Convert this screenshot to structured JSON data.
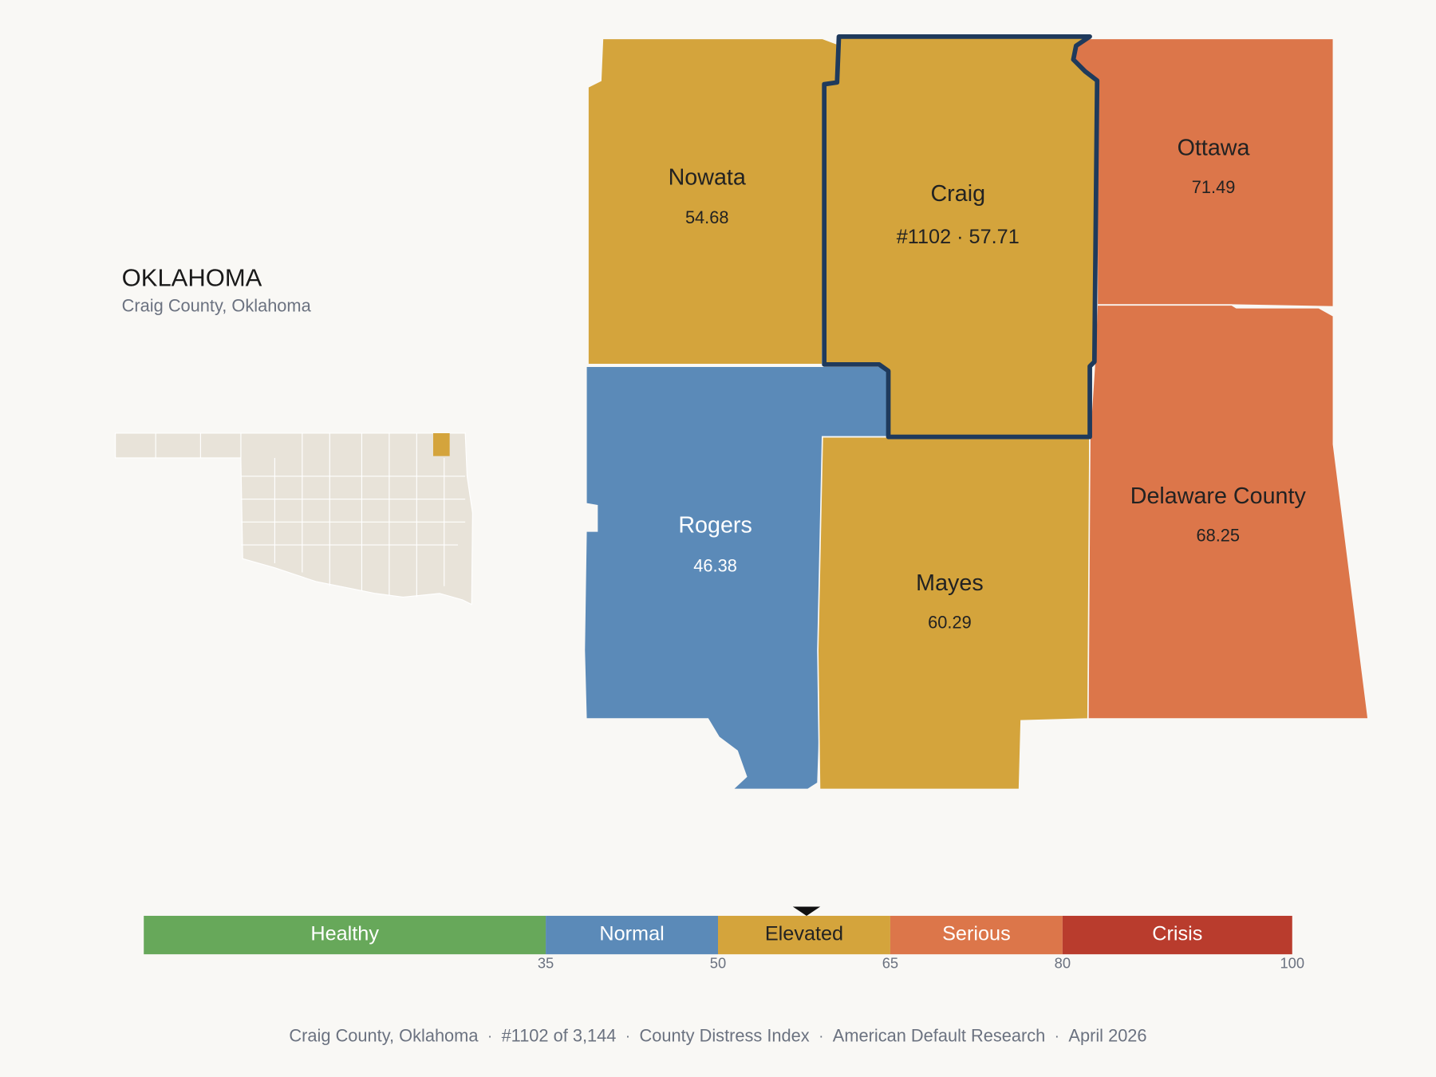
{
  "header": {
    "title": "OKLAHOMA",
    "subtitle": "Craig County, Oklahoma"
  },
  "counties": [
    {
      "name": "Nowata",
      "value": 54.68
    },
    {
      "name": "Craig",
      "value": 57.71,
      "value_label": "#1102 · 57.71",
      "highlight": true
    },
    {
      "name": "Ottawa",
      "value": 71.49
    },
    {
      "name": "Rogers",
      "value": 46.38
    },
    {
      "name": "Mayes",
      "value": 60.29
    },
    {
      "name": "Delaware County",
      "value": 68.25
    }
  ],
  "legend": {
    "xlim": [
      0,
      100
    ],
    "ticks": [
      35,
      50,
      65,
      80,
      100
    ],
    "bands": [
      {
        "name": "Healthy",
        "color": "#67a85a",
        "text_color": "#ffffff",
        "map_text_color": "#ffffff"
      },
      {
        "name": "Normal",
        "color": "#5b8ab8",
        "text_color": "#ffffff",
        "map_text_color": "#ffffff"
      },
      {
        "name": "Elevated",
        "color": "#d4a43c",
        "text_color": "#222222",
        "map_text_color": "#222222"
      },
      {
        "name": "Serious",
        "color": "#dc764a",
        "text_color": "#ffffff",
        "map_text_color": "#222222"
      },
      {
        "name": "Crisis",
        "color": "#b93c2d",
        "text_color": "#ffffff",
        "map_text_color": "#ffffff"
      }
    ]
  },
  "footer": {
    "separator": "·",
    "items": [
      "Craig County, Oklahoma",
      "#1102 of 3,144",
      "County Distress Index",
      "American Default Research",
      "April 2026"
    ]
  }
}
